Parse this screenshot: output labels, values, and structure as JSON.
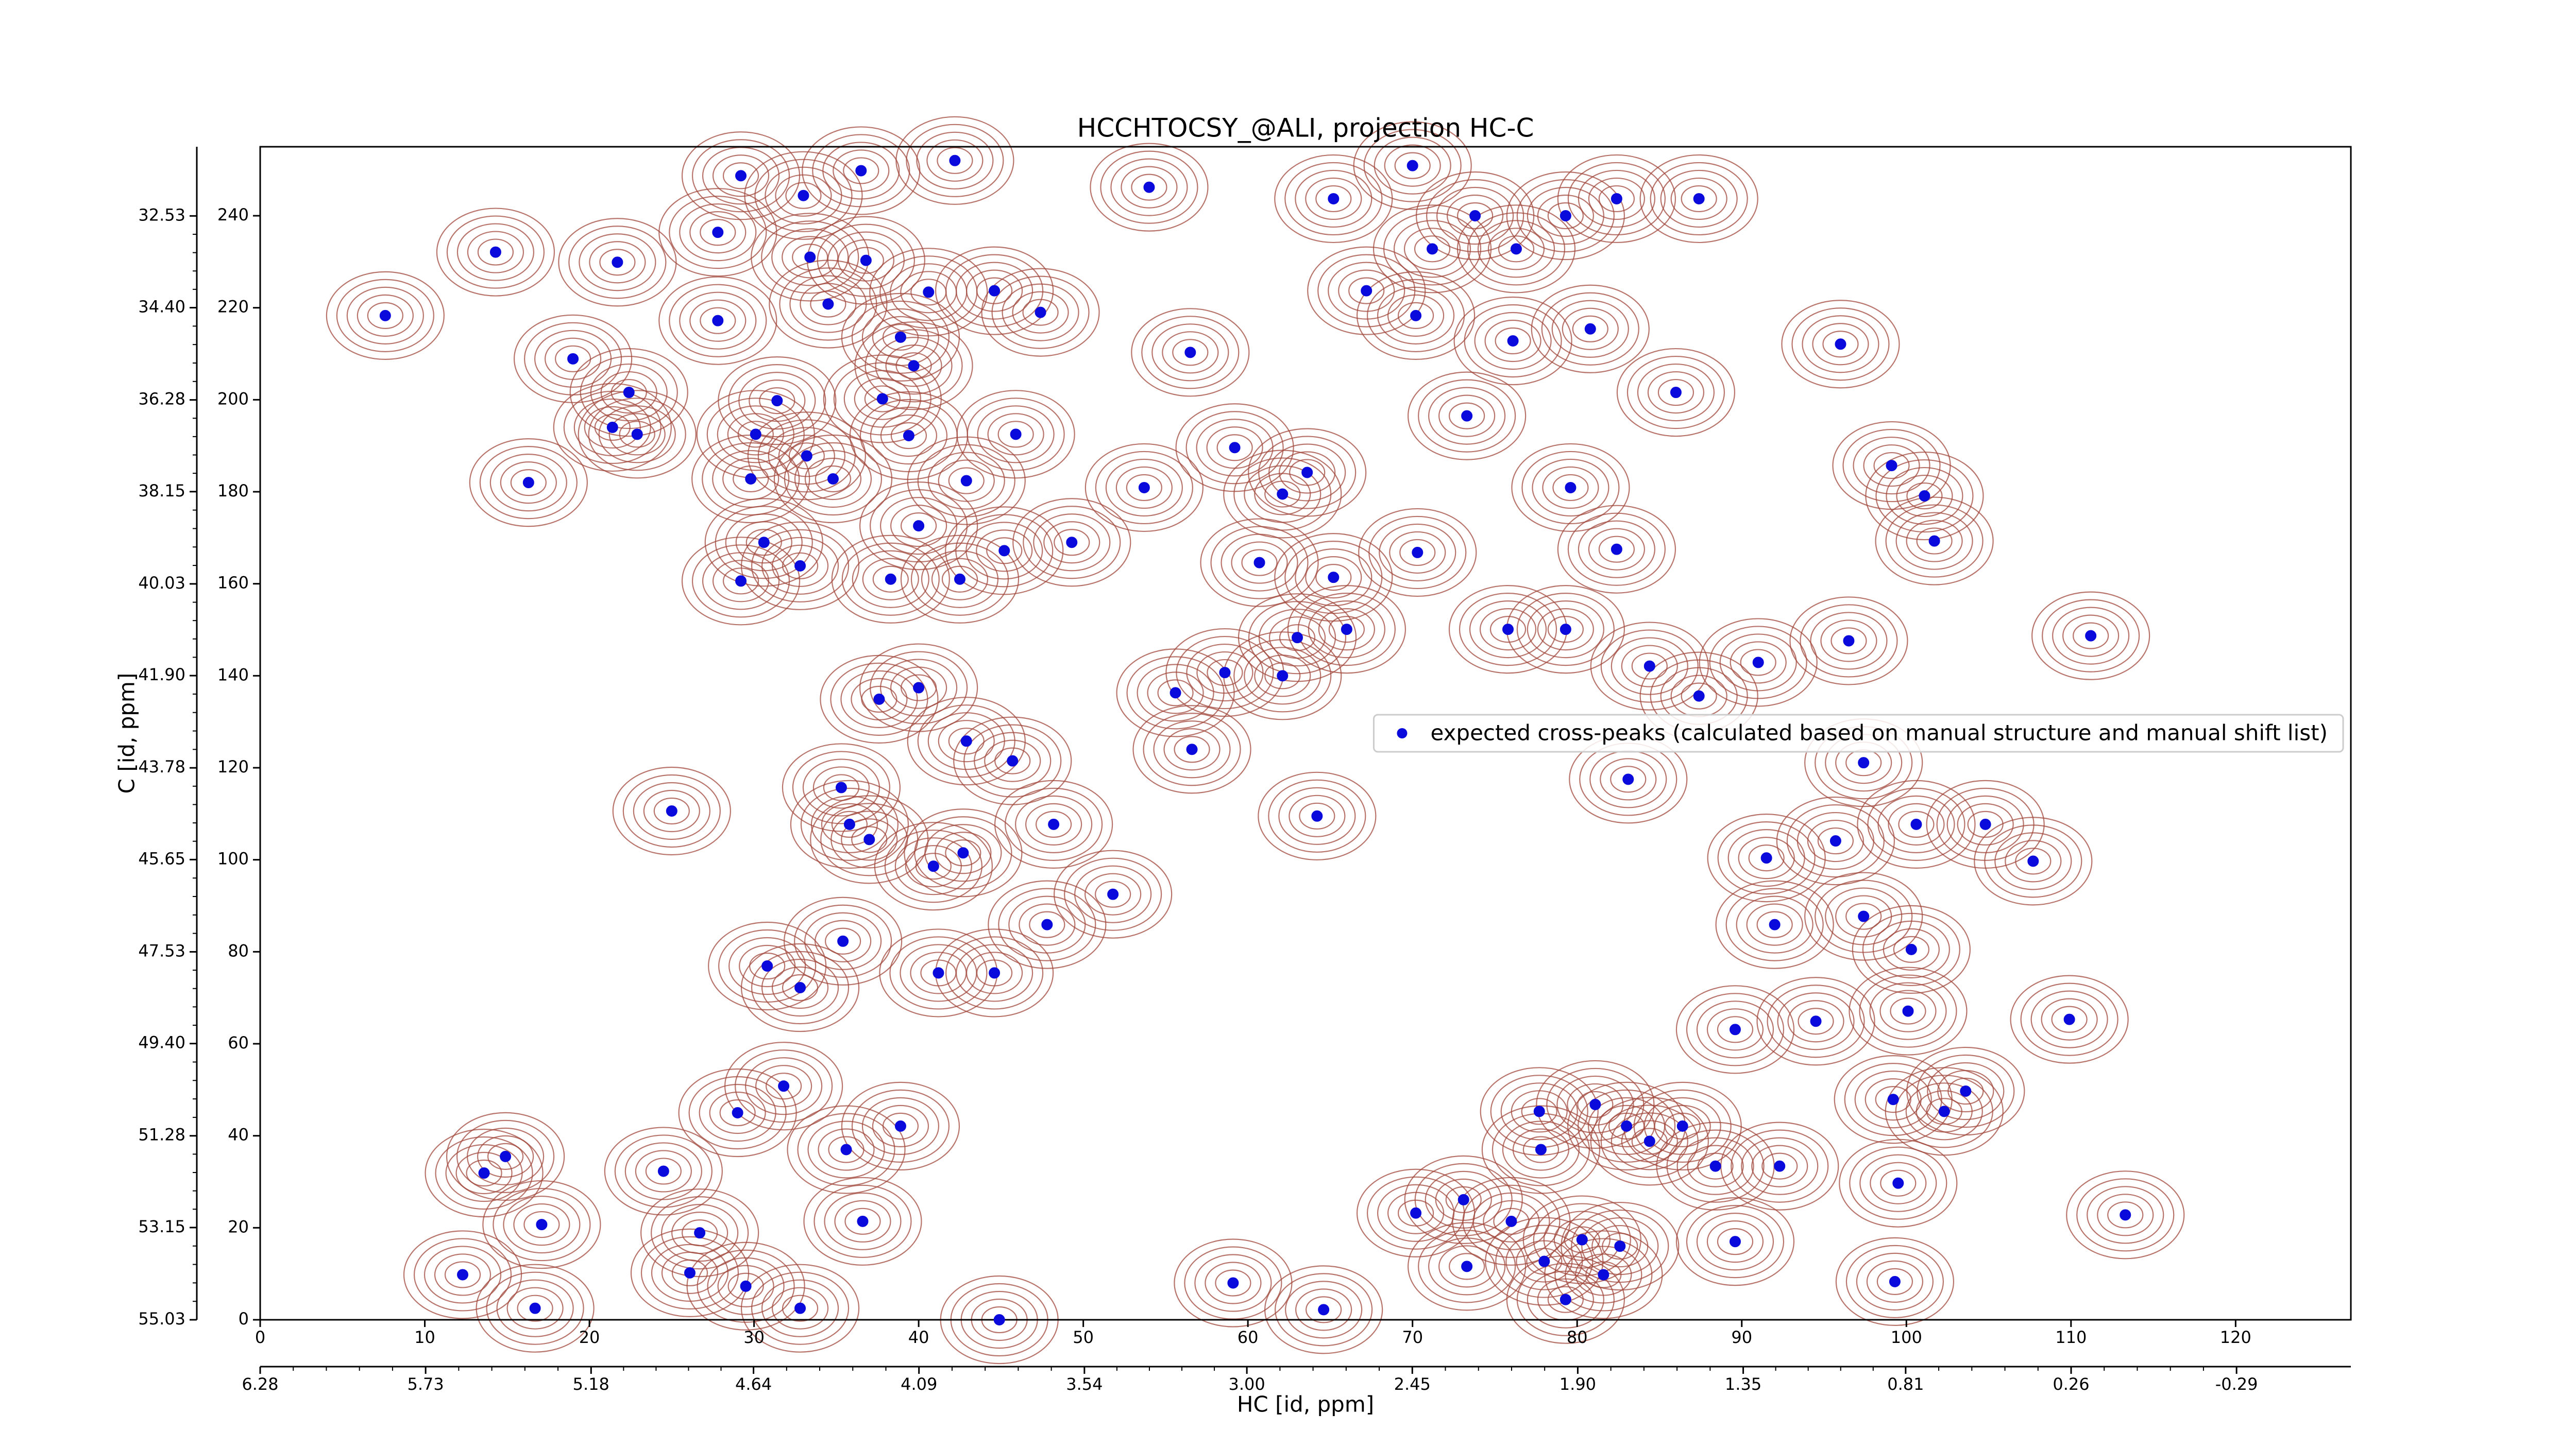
{
  "chart_data": {
    "type": "scatter",
    "title": "HCCHTOCSY_@ALI, projection HC-C",
    "x_label": "HC [id, ppm]",
    "y_label": "C [id, ppm]",
    "xlim": [
      0,
      127
    ],
    "ylim": [
      0,
      255
    ],
    "xticks": [
      0,
      10,
      20,
      30,
      40,
      50,
      60,
      70,
      80,
      90,
      100,
      110,
      120
    ],
    "yticks": [
      0,
      20,
      40,
      60,
      80,
      100,
      120,
      140,
      160,
      180,
      200,
      220,
      240
    ],
    "x2lim": [
      6.28,
      -0.67
    ],
    "x2ticks": [
      6.28,
      5.73,
      5.18,
      4.64,
      4.09,
      3.54,
      {
        "value": 3,
        "label": "3.00"
      },
      2.45,
      {
        "value": 1.9,
        "label": "1.90"
      },
      1.35,
      0.81,
      0.26,
      -0.29
    ],
    "y2lim": [
      55.03,
      31.12
    ],
    "y2ticks": [
      55.03,
      53.15,
      51.28,
      {
        "value": 49.4,
        "label": "49.40"
      },
      47.53,
      45.65,
      43.78,
      {
        "value": 41.9,
        "label": "41.90"
      },
      40.03,
      38.15,
      36.28,
      {
        "value": 34.4,
        "label": "34.40"
      },
      32.53
    ],
    "legend": "center right",
    "contour_color": "#a0453a",
    "series": [
      {
        "name": "expected cross-peaks (calculated based on manual structure and manual shift list)",
        "color": "#0a0adc",
        "x": [
          7.6,
          14.3,
          21.7,
          19.0,
          22.4,
          21.4,
          22.9,
          16.3,
          25.0,
          14.9,
          13.6,
          17.1,
          12.3,
          16.7,
          24.5,
          26.7,
          26.1,
          29.5,
          32.8,
          30.8,
          31.8,
          29.0,
          35.6,
          38.9,
          36.6,
          32.8,
          35.4,
          41.2,
          29.2,
          33.0,
          36.5,
          42.2,
          27.8,
          33.4,
          36.8,
          40.6,
          44.6,
          47.4,
          27.8,
          34.5,
          38.9,
          39.7,
          31.4,
          30.1,
          33.2,
          37.8,
          39.4,
          45.9,
          29.8,
          34.8,
          42.9,
          40.0,
          45.2,
          49.3,
          30.6,
          29.2,
          32.8,
          38.3,
          42.5,
          37.6,
          40.0,
          42.9,
          45.7,
          35.3,
          35.8,
          37.0,
          40.9,
          42.7,
          48.2,
          47.8,
          44.6,
          51.8,
          56.5,
          53.7,
          59.2,
          62.1,
          63.6,
          60.7,
          65.2,
          70.3,
          63.0,
          66.0,
          62.1,
          58.6,
          55.6,
          56.6,
          64.2,
          59.1,
          64.6,
          70.2,
          73.1,
          76.0,
          78.0,
          80.3,
          82.6,
          84.4,
          86.4,
          89.6,
          92.3,
          99.3,
          99.5,
          99.2,
          102.3,
          100.1,
          94.5,
          89.6,
          92.0,
          97.4,
          100.3,
          91.5,
          95.7,
          100.6,
          104.8,
          107.7,
          109.9,
          111.2,
          113.3,
          99.1,
          101.1,
          101.7,
          96.5,
          97.4,
          91.0,
          87.4,
          84.4,
          79.3,
          75.8,
          83.1,
          79.6,
          82.4,
          86.0,
          96.0,
          80.8,
          76.1,
          73.3,
          70.0,
          71.2,
          76.3,
          79.3,
          82.4,
          87.4,
          73.8,
          67.2,
          70.2,
          65.2,
          54.0,
          44.9,
          77.7,
          81.1,
          83.0,
          77.8,
          73.3,
          79.3,
          81.6,
          103.6,
          88.4
        ],
        "values": [
          218.3,
          232.1,
          229.9,
          208.9,
          201.6,
          194.0,
          192.5,
          182.0,
          110.6,
          35.5,
          31.9,
          20.7,
          9.8,
          2.5,
          32.3,
          18.9,
          10.2,
          7.3,
          2.5,
          76.9,
          50.8,
          45.0,
          37.0,
          42.1,
          21.4,
          72.2,
          82.3,
          75.4,
          248.7,
          244.4,
          249.8,
          252.0,
          236.4,
          231.0,
          230.3,
          223.4,
          223.7,
          219.0,
          217.2,
          220.8,
          213.6,
          207.4,
          199.8,
          192.5,
          187.8,
          200.2,
          192.2,
          192.5,
          182.8,
          182.8,
          182.4,
          172.6,
          167.2,
          169.0,
          169.0,
          160.6,
          163.9,
          161.0,
          161.0,
          134.9,
          137.4,
          125.8,
          121.5,
          115.7,
          107.7,
          104.4,
          98.6,
          101.5,
          107.7,
          85.9,
          75.4,
          92.5,
          210.3,
          180.9,
          189.6,
          179.5,
          184.2,
          164.6,
          161.4,
          166.8,
          148.3,
          150.1,
          140.0,
          140.7,
          136.3,
          124.0,
          109.5,
          8.0,
          2.2,
          23.2,
          26.1,
          21.4,
          12.7,
          17.4,
          16.0,
          38.8,
          42.1,
          17.0,
          33.4,
          8.3,
          29.7,
          47.9,
          45.3,
          67.1,
          64.9,
          63.1,
          85.9,
          87.7,
          80.5,
          100.4,
          104.1,
          107.7,
          107.7,
          99.7,
          65.3,
          148.7,
          22.8,
          185.7,
          179.1,
          169.3,
          147.6,
          121.1,
          142.9,
          135.6,
          142.1,
          150.1,
          150.1,
          117.5,
          180.9,
          167.5,
          201.6,
          212.1,
          215.4,
          212.8,
          196.5,
          250.9,
          232.8,
          232.8,
          240.0,
          243.7,
          243.7,
          240.0,
          223.7,
          218.3,
          243.7,
          246.2,
          0.0,
          45.3,
          46.8,
          42.1,
          37.0,
          11.6,
          4.4,
          9.8,
          49.7,
          33.4
        ]
      }
    ]
  }
}
